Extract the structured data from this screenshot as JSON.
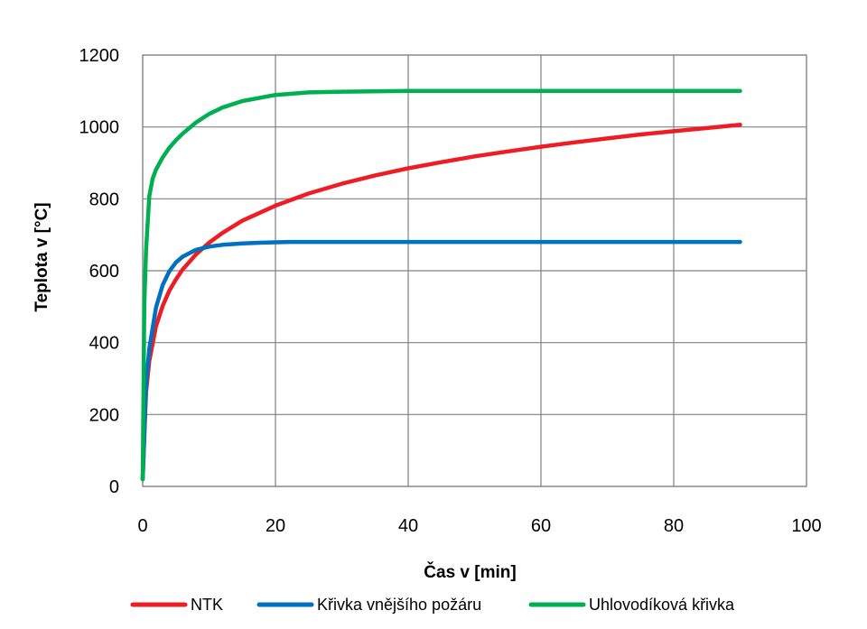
{
  "chart_data": {
    "type": "line",
    "title": "",
    "xlabel": "Čas v [min]",
    "ylabel": "Teplota v [°C]",
    "xlim": [
      0,
      100
    ],
    "ylim": [
      0,
      1200
    ],
    "xticks": [
      0,
      20,
      40,
      60,
      80,
      100
    ],
    "yticks": [
      0,
      200,
      400,
      600,
      800,
      1000,
      1200
    ],
    "grid": true,
    "legend_position": "bottom",
    "series": [
      {
        "name": "NTK",
        "color": "#ee1c25",
        "x": [
          0,
          0.5,
          1,
          2,
          3,
          4,
          5,
          6,
          8,
          10,
          12,
          15,
          20,
          25,
          30,
          35,
          40,
          45,
          50,
          55,
          60,
          65,
          70,
          75,
          80,
          85,
          90
        ],
        "y": [
          20,
          261,
          349,
          445,
          502,
          544,
          576,
          603,
          645,
          678,
          705,
          739,
          781,
          815,
          842,
          865,
          885,
          902,
          918,
          932,
          945,
          957,
          968,
          979,
          988,
          997,
          1006
        ]
      },
      {
        "name": "Křivka vnějšího požáru",
        "color": "#0070c0",
        "x": [
          0,
          0.5,
          1,
          2,
          3,
          4,
          5,
          6,
          8,
          10,
          12,
          15,
          18,
          20,
          22,
          25,
          30,
          40,
          50,
          60,
          70,
          80,
          90
        ],
        "y": [
          20,
          283,
          383,
          497,
          560,
          598,
          623,
          639,
          658,
          667,
          672,
          676,
          678,
          679,
          680,
          680,
          680,
          680,
          680,
          680,
          680,
          680,
          680
        ]
      },
      {
        "name": "Uhlovodíková křivka",
        "color": "#00b050",
        "x": [
          0,
          0.25,
          0.5,
          1,
          1.5,
          2,
          3,
          4,
          5,
          6,
          8,
          10,
          12,
          15,
          20,
          25,
          30,
          40,
          50,
          60,
          70,
          80,
          90
        ],
        "y": [
          20,
          507,
          656,
          807,
          856,
          881,
          915,
          942,
          963,
          981,
          1012,
          1036,
          1054,
          1072,
          1089,
          1096,
          1098,
          1100,
          1100,
          1100,
          1100,
          1100,
          1100
        ]
      }
    ]
  }
}
